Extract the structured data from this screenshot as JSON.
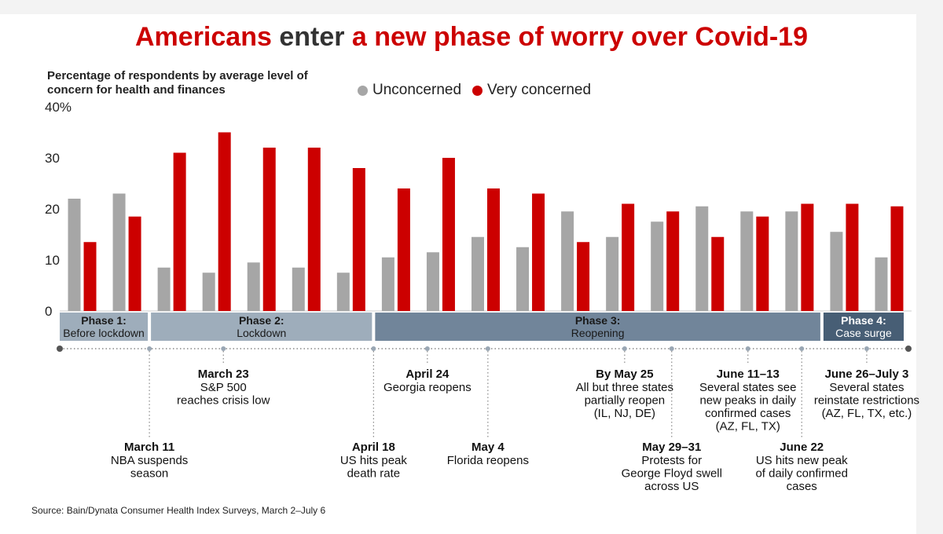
{
  "title": {
    "part1": "Americans",
    "part2": " enter ",
    "part3": "a new phase of worry over Covid-19"
  },
  "subtitle": "Percentage of respondents by average level of concern for health and finances",
  "legend": [
    {
      "label": "Unconcerned",
      "color": "#a6a6a6"
    },
    {
      "label": "Very concerned",
      "color": "#cc0000"
    }
  ],
  "source": "Source: Bain/Dynata Consumer Health Index Surveys, March 2–July 6",
  "chart_data": {
    "type": "bar",
    "title": "Americans enter a new phase of worry over Covid-19",
    "ylabel": "Percentage of respondents by average level of concern for health and finances",
    "ylim": [
      0,
      40
    ],
    "yticks": [
      "0",
      "10",
      "20",
      "30",
      "40%"
    ],
    "grid": false,
    "legend_position": "top",
    "series": [
      {
        "name": "Unconcerned",
        "color": "#a6a6a6",
        "values": [
          22,
          23,
          8.5,
          7.5,
          9.5,
          8.5,
          7.5,
          10.5,
          11.5,
          14.5,
          12.5,
          19.5,
          14.5,
          17.5,
          20.5,
          19.5,
          19.5,
          15.5,
          10.5
        ]
      },
      {
        "name": "Very concerned",
        "color": "#cc0000",
        "values": [
          13.5,
          18.5,
          31,
          35,
          32,
          32,
          28,
          24,
          30,
          24,
          23,
          13.5,
          21,
          19.5,
          14.5,
          18.5,
          21,
          21,
          20.5
        ]
      }
    ],
    "phases": [
      {
        "label": "Phase 1:",
        "sub": "Before lockdown",
        "start": 0,
        "end": 2,
        "color": "#9eadbb"
      },
      {
        "label": "Phase 2:",
        "sub": "Lockdown",
        "start": 2,
        "end": 7,
        "color": "#9eadbb"
      },
      {
        "label": "Phase 3:",
        "sub": "Reopening",
        "start": 7,
        "end": 17,
        "color": "#71859a"
      },
      {
        "label": "Phase 4:",
        "sub": "Case surge",
        "start": 17,
        "end": 19,
        "color": "#475e75"
      }
    ],
    "events": [
      {
        "title": "March 11",
        "lines": [
          "NBA suspends",
          "season"
        ],
        "pos": 2,
        "level": "low"
      },
      {
        "title": "March 23",
        "lines": [
          "S&P 500",
          "reaches crisis low"
        ],
        "pos": 3.65,
        "level": "high"
      },
      {
        "title": "April 18",
        "lines": [
          "US hits peak",
          "death rate"
        ],
        "pos": 7,
        "level": "low"
      },
      {
        "title": "April 24",
        "lines": [
          "Georgia reopens"
        ],
        "pos": 8.2,
        "level": "high"
      },
      {
        "title": "May 4",
        "lines": [
          "Florida reopens"
        ],
        "pos": 9.55,
        "level": "low"
      },
      {
        "title": "By May 25",
        "lines": [
          "All but three states",
          "partially reopen",
          "(IL, NJ, DE)"
        ],
        "pos": 12.6,
        "level": "high"
      },
      {
        "title": "May 29–31",
        "lines": [
          "Protests for",
          "George Floyd swell",
          "across US"
        ],
        "pos": 13.65,
        "level": "low"
      },
      {
        "title": "June 11–13",
        "lines": [
          "Several states see",
          "new peaks in daily",
          "confirmed cases",
          "(AZ, FL, TX)"
        ],
        "pos": 15.35,
        "level": "high"
      },
      {
        "title": "June 22",
        "lines": [
          "US hits new peak",
          "of daily confirmed",
          "cases"
        ],
        "pos": 16.55,
        "level": "low"
      },
      {
        "title": "June 26–July 3",
        "lines": [
          "Several states",
          "reinstate restrictions",
          "(AZ, FL, TX, etc.)"
        ],
        "pos": 18.0,
        "level": "high"
      }
    ]
  }
}
